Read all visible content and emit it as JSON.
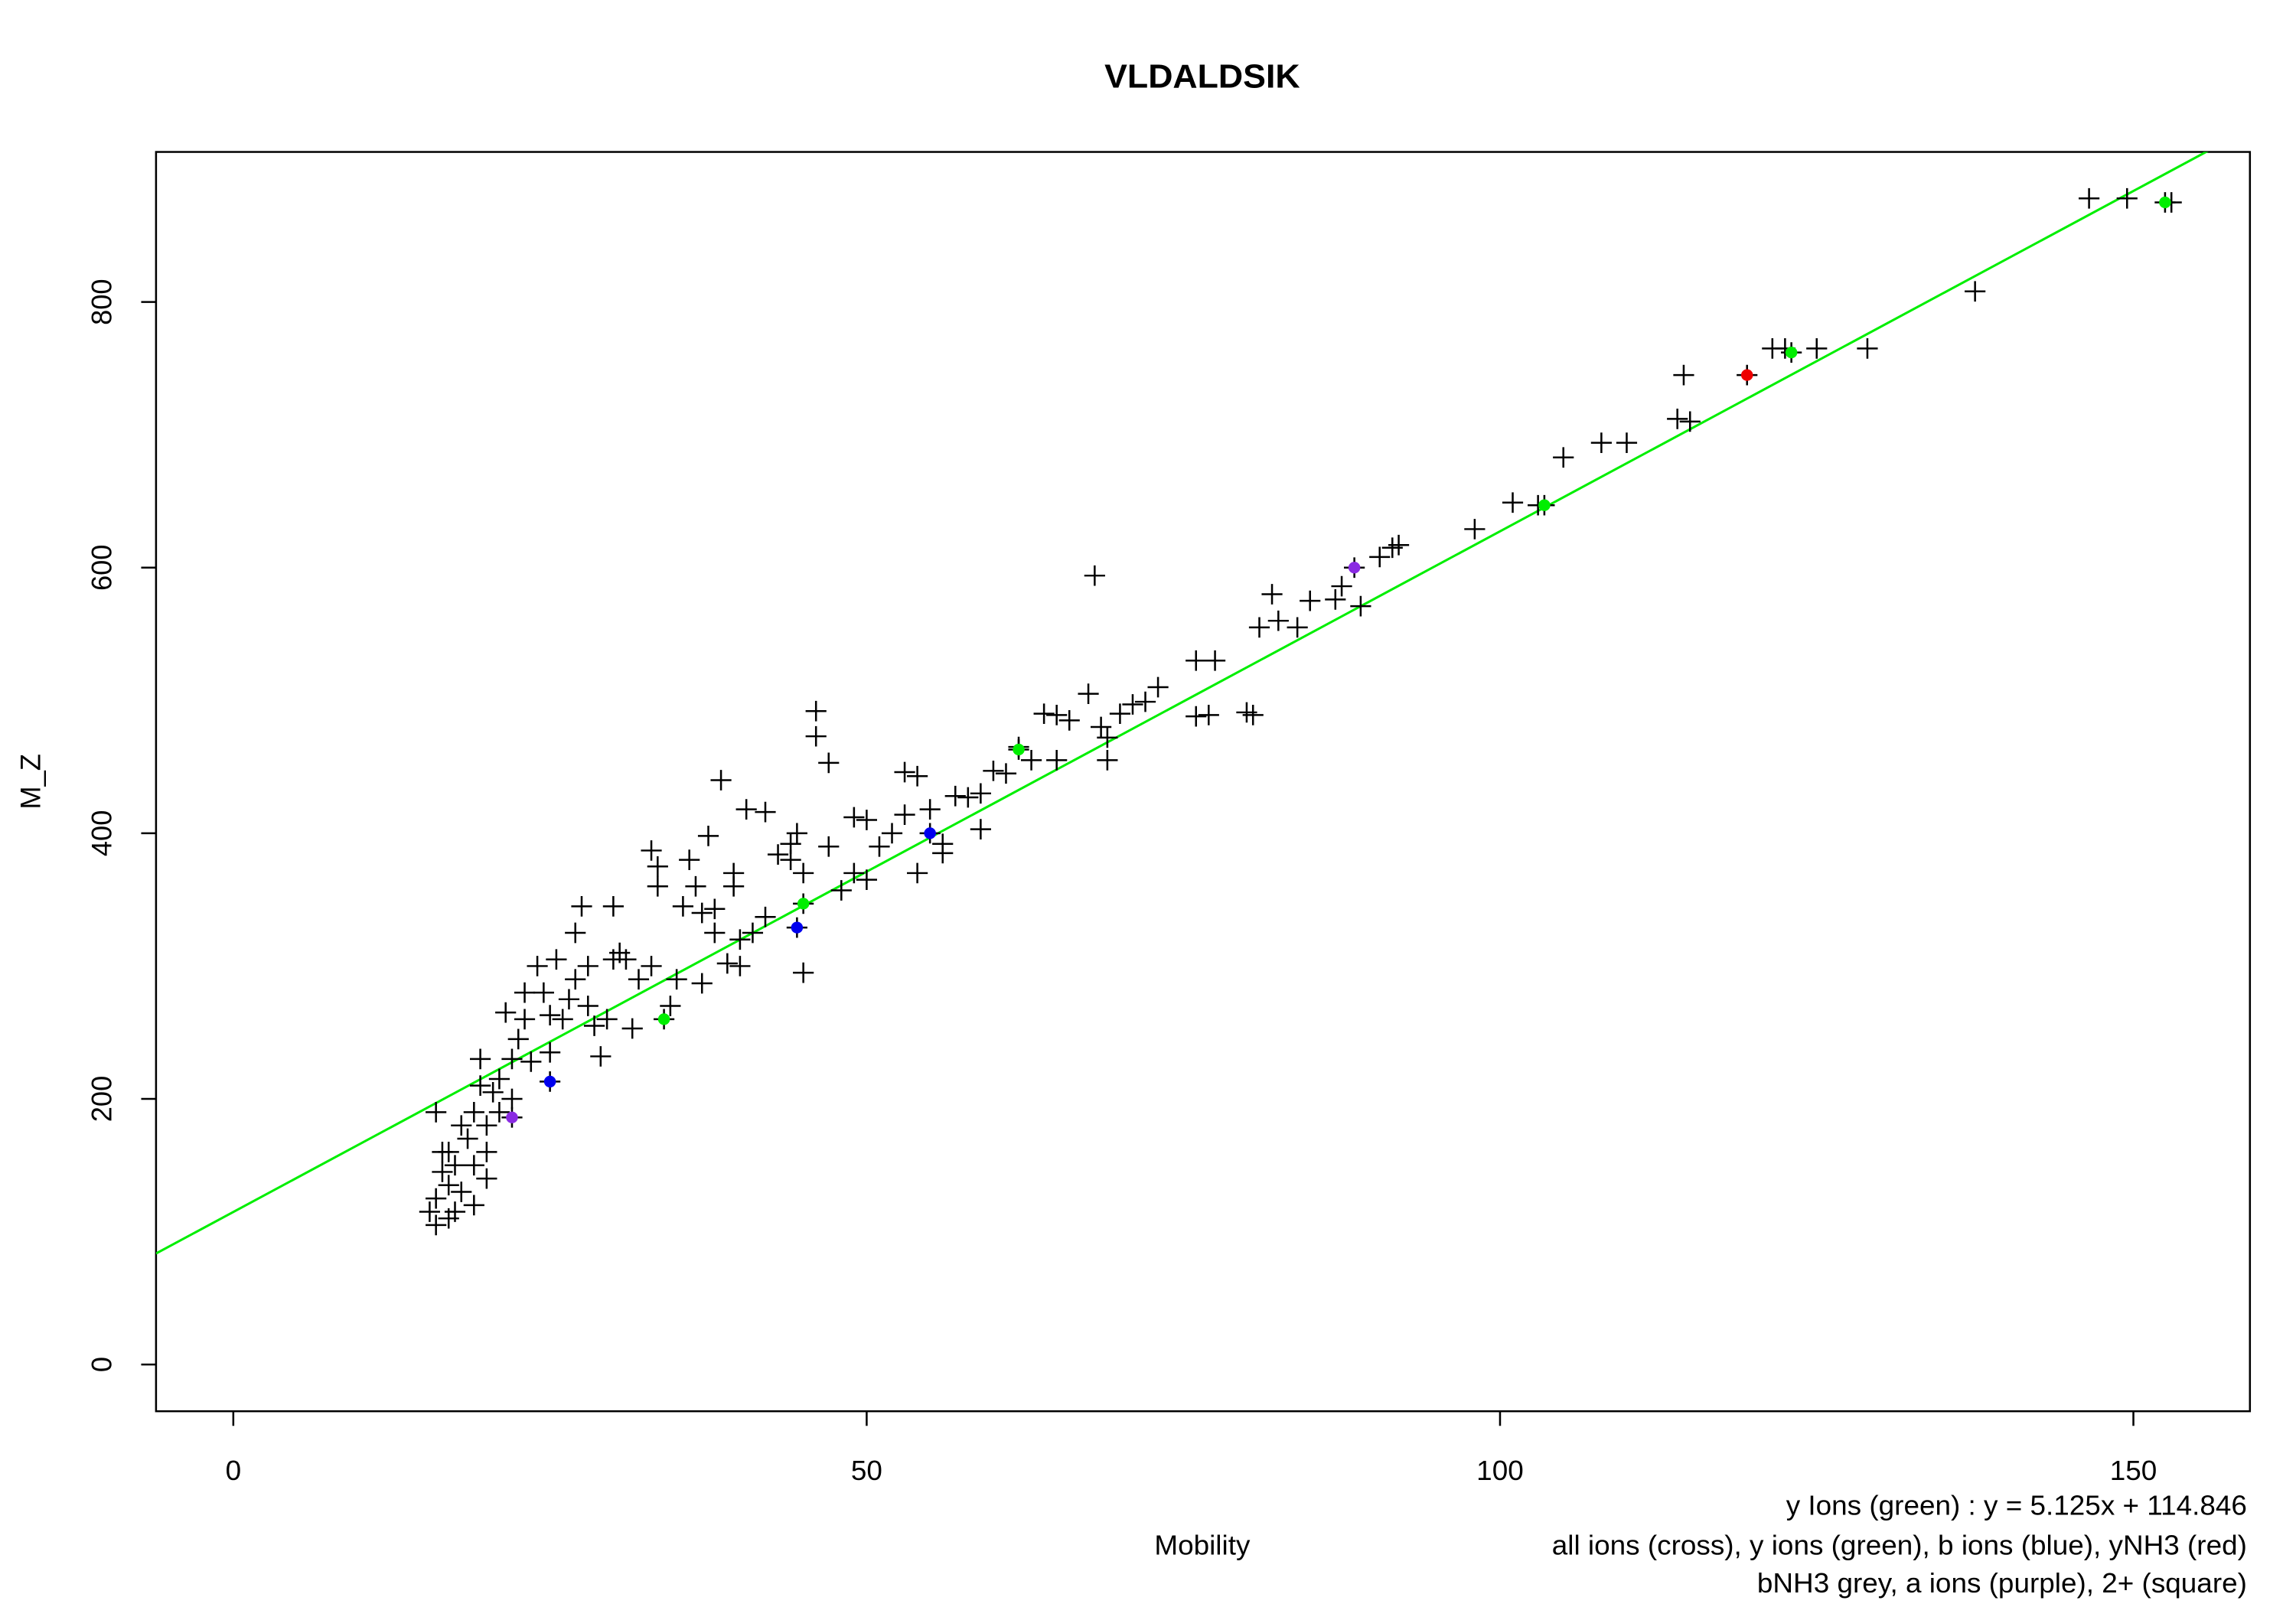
{
  "chart_data": {
    "type": "scatter",
    "title": "VLDALDSIK",
    "x_label": "Mobility",
    "y_label": "M_Z",
    "notes": [
      "y Ions (green) : y = 5.125x + 114.846",
      "all ions (cross), y ions (green), b ions (blue), yNH3 (red)",
      "bNH3 grey, a ions (purple), 2+ (square)"
    ],
    "xlim": [
      -6.1,
      159.2
    ],
    "ylim": [
      -35.2,
      913
    ],
    "xticks": [
      0,
      50,
      100,
      150
    ],
    "yticks": [
      0,
      200,
      400,
      600,
      800
    ],
    "fit": {
      "slope": 5.125,
      "intercept": 114.846,
      "color": "#00ee00"
    },
    "series": [
      {
        "color": "#000000",
        "marker": "cross",
        "x": [
          146.5,
          149.5,
          153,
          137.5,
          129,
          125,
          121.5,
          122.5,
          114.5,
          114,
          115,
          110,
          108,
          105,
          103,
          101,
          98,
          92,
          91.5,
          90.5,
          89,
          87.5,
          87,
          85,
          84,
          82.5,
          82,
          81,
          80,
          80.5,
          77.5,
          76,
          77,
          76,
          73,
          72,
          71,
          70,
          69,
          69,
          68.5,
          68,
          67.5,
          66,
          65,
          64,
          65,
          63,
          62,
          61,
          60,
          59,
          58,
          59,
          57,
          56,
          56,
          55,
          54,
          54,
          53,
          53,
          52,
          51,
          50,
          49,
          50,
          49,
          48,
          47,
          47,
          46,
          46,
          45,
          45,
          44.5,
          44,
          44,
          43,
          42,
          42,
          41,
          40.5,
          40,
          40,
          39.5,
          39.5,
          39,
          38.5,
          38,
          38,
          37.5,
          37,
          37,
          36.5,
          36,
          35.5,
          35,
          34.5,
          33.5,
          33.5,
          33,
          33,
          32,
          31.5,
          31,
          30.5,
          30,
          30,
          29.5,
          29,
          28.5,
          28,
          28,
          27.5,
          27,
          27,
          26.5,
          26,
          25.5,
          25,
          25,
          24.5,
          24,
          23.5,
          23,
          23,
          22.5,
          22,
          22,
          21.5,
          21,
          21,
          20.5,
          20,
          20,
          19.5,
          19.5,
          19,
          19,
          18.5,
          18,
          18,
          17.5,
          17.5,
          17,
          17,
          16.5,
          16,
          16,
          16,
          15.5,
          16.5,
          17,
          19,
          20
        ],
        "y": [
          878,
          878,
          875,
          808,
          765,
          765,
          765,
          765,
          745,
          712,
          710,
          694,
          694,
          683,
          647,
          649,
          629,
          617,
          615,
          608,
          571,
          586,
          576,
          575,
          555,
          560,
          580,
          555,
          491,
          489,
          530,
          530,
          489,
          488,
          510,
          499,
          497,
          490,
          472,
          455,
          480,
          594,
          505,
          485,
          489,
          490,
          455,
          455,
          465,
          445,
          447,
          430,
          427,
          403,
          428,
          385,
          392,
          418,
          370,
          443,
          446,
          414,
          400,
          390,
          410,
          412,
          365,
          370,
          357,
          390,
          453,
          473,
          492,
          370,
          295,
          400,
          380,
          392,
          384,
          416,
          337,
          325,
          418,
          320,
          300,
          370,
          360,
          302,
          440,
          343,
          325,
          398,
          287,
          340,
          360,
          380,
          345,
          290,
          270,
          360,
          375,
          387,
          300,
          290,
          253,
          305,
          310,
          345,
          305,
          260,
          232,
          255,
          270,
          300,
          345,
          325,
          290,
          275,
          260,
          305,
          235,
          263,
          280,
          300,
          228,
          260,
          280,
          245,
          230,
          200,
          265,
          215,
          190,
          205,
          180,
          160,
          210,
          230,
          150,
          190,
          170,
          130,
          180,
          115,
          150,
          110,
          135,
          160,
          125,
          105,
          190,
          115,
          145,
          160,
          120,
          140
        ]
      },
      {
        "color": "#00ee00",
        "marker": "dot",
        "x": [
          34,
          45,
          62,
          103.5,
          123,
          152.5
        ],
        "y": [
          260,
          347,
          463,
          647,
          762,
          875
        ]
      },
      {
        "color": "#0000ee",
        "marker": "dot",
        "x": [
          25,
          44.5,
          55
        ],
        "y": [
          213,
          329,
          400
        ]
      },
      {
        "color": "#ee0000",
        "marker": "dot",
        "x": [
          119.5
        ],
        "y": [
          745
        ]
      },
      {
        "color": "#8a2be2",
        "marker": "dot",
        "x": [
          22,
          88.5
        ],
        "y": [
          186,
          600
        ]
      }
    ]
  }
}
